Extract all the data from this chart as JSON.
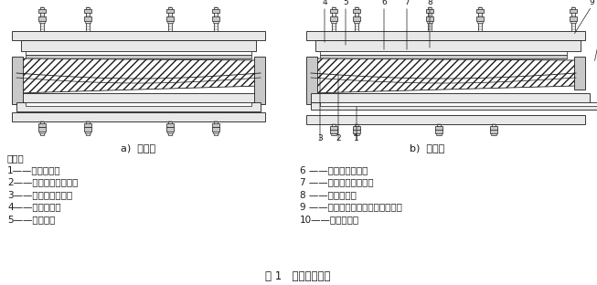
{
  "title": "图 1   多向活动支座",
  "label_a": "a)  纵桥向",
  "label_b": "b)  横桥向",
  "shuoming": "说明：",
  "legend_left": [
    "1——下支座板；",
    "2——球面非金属滑板；",
    "3——球面不锈钢板；",
    "4——上支座板；",
    "5——密封环；"
  ],
  "legend_right": [
    "6 ——平面不锈钢板；",
    "7 ——平面非金属滑板；",
    "8 ——球冠衬板；",
    "9 ——锚栓（螺栓、套筒和螺杆）；",
    "10——防尘围板。"
  ],
  "bg_color": "#ffffff",
  "text_color": "#1a1a1a",
  "line_color": "#1a1a1a",
  "fill_light": "#e8e8e8",
  "fill_mid": "#c8c8c8",
  "fill_dark": "#a0a0a0"
}
